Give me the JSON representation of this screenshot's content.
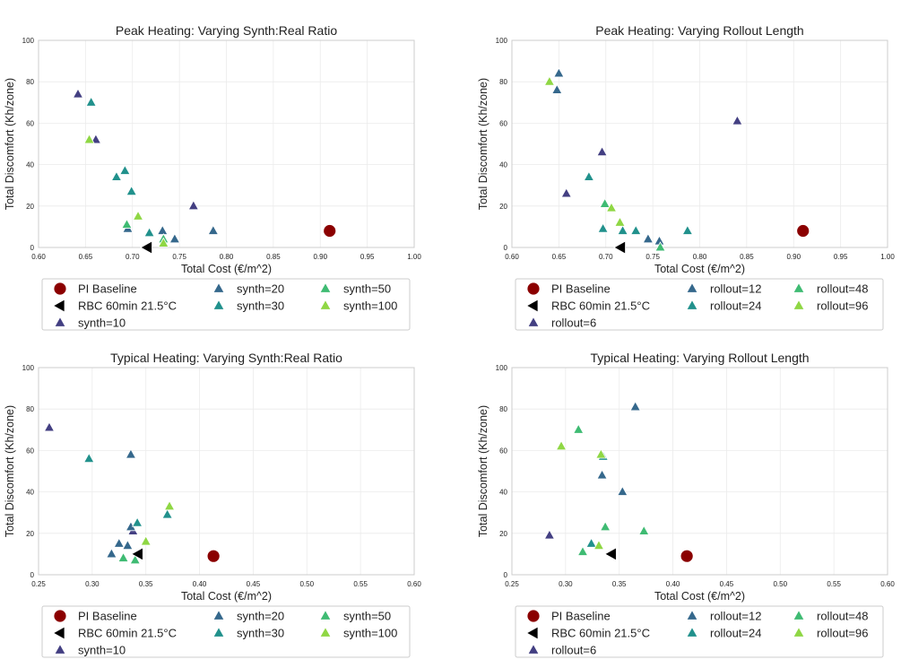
{
  "colors": {
    "pi_baseline": "#8b0000",
    "rbc": "#000000",
    "v1": "#433f82",
    "v2": "#35688c",
    "v3": "#21918c",
    "v4": "#3fbb73",
    "v5": "#8fd744",
    "grid": "#ebebeb"
  },
  "chart_data": [
    {
      "type": "scatter",
      "title": "Peak Heating: Varying Synth:Real Ratio",
      "xlabel": "Total Cost (€/m^2)",
      "ylabel": "Total Discomfort (Kh/zone)",
      "xlim": [
        0.6,
        1.0
      ],
      "ylim": [
        0,
        100
      ],
      "xticks": [
        "0.60",
        "0.65",
        "0.70",
        "0.75",
        "0.80",
        "0.85",
        "0.90",
        "0.95",
        "1.00"
      ],
      "yticks": [
        "0",
        "20",
        "40",
        "60",
        "80",
        "100"
      ],
      "grid": true,
      "legend_position": "below",
      "legend_items": [
        "PI Baseline",
        "RBC 60min 21.5°C",
        "synth=10",
        "synth=20",
        "synth=30",
        "synth=50",
        "synth=100"
      ],
      "series": [
        {
          "name": "PI Baseline",
          "marker": "circle",
          "color_key": "pi_baseline",
          "points": [
            [
              0.91,
              8
            ]
          ]
        },
        {
          "name": "RBC 60min 21.5°C",
          "marker": "left-triangle",
          "color_key": "rbc",
          "points": [
            [
              0.716,
              0
            ]
          ]
        },
        {
          "name": "synth=10",
          "marker": "triangle",
          "color_key": "v1",
          "points": [
            [
              0.642,
              74
            ],
            [
              0.661,
              52
            ],
            [
              0.765,
              20
            ]
          ]
        },
        {
          "name": "synth=20",
          "marker": "triangle",
          "color_key": "v2",
          "points": [
            [
              0.695,
              9
            ],
            [
              0.732,
              8
            ],
            [
              0.745,
              4
            ],
            [
              0.786,
              8
            ]
          ]
        },
        {
          "name": "synth=30",
          "marker": "triangle",
          "color_key": "v3",
          "points": [
            [
              0.656,
              70
            ],
            [
              0.692,
              37
            ],
            [
              0.683,
              34
            ],
            [
              0.699,
              27
            ],
            [
              0.718,
              7
            ]
          ]
        },
        {
          "name": "synth=50",
          "marker": "triangle",
          "color_key": "v4",
          "points": [
            [
              0.694,
              11
            ],
            [
              0.733,
              4
            ]
          ]
        },
        {
          "name": "synth=100",
          "marker": "triangle",
          "color_key": "v5",
          "points": [
            [
              0.654,
              52
            ],
            [
              0.706,
              15
            ],
            [
              0.733,
              2
            ]
          ]
        }
      ]
    },
    {
      "type": "scatter",
      "title": "Peak Heating: Varying Rollout Length",
      "xlabel": "Total Cost (€/m^2)",
      "ylabel": "Total Discomfort (Kh/zone)",
      "xlim": [
        0.6,
        1.0
      ],
      "ylim": [
        0,
        100
      ],
      "xticks": [
        "0.60",
        "0.65",
        "0.70",
        "0.75",
        "0.80",
        "0.85",
        "0.90",
        "0.95",
        "1.00"
      ],
      "yticks": [
        "0",
        "20",
        "40",
        "60",
        "80",
        "100"
      ],
      "grid": true,
      "legend_position": "below",
      "legend_items": [
        "PI Baseline",
        "RBC 60min 21.5°C",
        "rollout=6",
        "rollout=12",
        "rollout=24",
        "rollout=48",
        "rollout=96"
      ],
      "series": [
        {
          "name": "PI Baseline",
          "marker": "circle",
          "color_key": "pi_baseline",
          "points": [
            [
              0.91,
              8
            ]
          ]
        },
        {
          "name": "RBC 60min 21.5°C",
          "marker": "left-triangle",
          "color_key": "rbc",
          "points": [
            [
              0.716,
              0
            ]
          ]
        },
        {
          "name": "rollout=6",
          "marker": "triangle",
          "color_key": "v1",
          "points": [
            [
              0.658,
              26
            ],
            [
              0.696,
              46
            ],
            [
              0.84,
              61
            ]
          ]
        },
        {
          "name": "rollout=12",
          "marker": "triangle",
          "color_key": "v2",
          "points": [
            [
              0.65,
              84
            ],
            [
              0.648,
              76
            ],
            [
              0.745,
              4
            ],
            [
              0.757,
              3
            ]
          ]
        },
        {
          "name": "rollout=24",
          "marker": "triangle",
          "color_key": "v3",
          "points": [
            [
              0.682,
              34
            ],
            [
              0.697,
              9
            ],
            [
              0.718,
              8
            ],
            [
              0.732,
              8
            ],
            [
              0.787,
              8
            ]
          ]
        },
        {
          "name": "rollout=48",
          "marker": "triangle",
          "color_key": "v4",
          "points": [
            [
              0.699,
              21
            ],
            [
              0.758,
              0
            ]
          ]
        },
        {
          "name": "rollout=96",
          "marker": "triangle",
          "color_key": "v5",
          "points": [
            [
              0.64,
              80
            ],
            [
              0.706,
              19
            ],
            [
              0.715,
              12
            ]
          ]
        }
      ]
    },
    {
      "type": "scatter",
      "title": "Typical Heating: Varying Synth:Real Ratio",
      "xlabel": "Total Cost (€/m^2)",
      "ylabel": "Total Discomfort (Kh/zone)",
      "xlim": [
        0.25,
        0.6
      ],
      "ylim": [
        0,
        100
      ],
      "xticks": [
        "0.25",
        "0.30",
        "0.35",
        "0.40",
        "0.45",
        "0.50",
        "0.55",
        "0.60"
      ],
      "yticks": [
        "0",
        "20",
        "40",
        "60",
        "80",
        "100"
      ],
      "grid": true,
      "legend_position": "below",
      "legend_items": [
        "PI Baseline",
        "RBC 60min 21.5°C",
        "synth=10",
        "synth=20",
        "synth=30",
        "synth=50",
        "synth=100"
      ],
      "series": [
        {
          "name": "PI Baseline",
          "marker": "circle",
          "color_key": "pi_baseline",
          "points": [
            [
              0.413,
              9
            ]
          ]
        },
        {
          "name": "RBC 60min 21.5°C",
          "marker": "left-triangle",
          "color_key": "rbc",
          "points": [
            [
              0.343,
              10
            ]
          ]
        },
        {
          "name": "synth=10",
          "marker": "triangle",
          "color_key": "v1",
          "points": [
            [
              0.26,
              71
            ],
            [
              0.338,
              21
            ]
          ]
        },
        {
          "name": "synth=20",
          "marker": "triangle",
          "color_key": "v2",
          "points": [
            [
              0.336,
              58
            ],
            [
              0.318,
              10
            ],
            [
              0.325,
              15
            ],
            [
              0.333,
              14
            ],
            [
              0.336,
              23
            ]
          ]
        },
        {
          "name": "synth=30",
          "marker": "triangle",
          "color_key": "v3",
          "points": [
            [
              0.297,
              56
            ],
            [
              0.342,
              25
            ],
            [
              0.37,
              29
            ]
          ]
        },
        {
          "name": "synth=50",
          "marker": "triangle",
          "color_key": "v4",
          "points": [
            [
              0.329,
              8
            ],
            [
              0.34,
              7
            ]
          ]
        },
        {
          "name": "synth=100",
          "marker": "triangle",
          "color_key": "v5",
          "points": [
            [
              0.372,
              33
            ],
            [
              0.35,
              16
            ]
          ]
        }
      ]
    },
    {
      "type": "scatter",
      "title": "Typical Heating: Varying Rollout Length",
      "xlabel": "Total Cost (€/m^2)",
      "ylabel": "Total Discomfort (Kh/zone)",
      "xlim": [
        0.25,
        0.6
      ],
      "ylim": [
        0,
        100
      ],
      "xticks": [
        "0.25",
        "0.30",
        "0.35",
        "0.40",
        "0.45",
        "0.50",
        "0.55",
        "0.60"
      ],
      "yticks": [
        "0",
        "20",
        "40",
        "60",
        "80",
        "100"
      ],
      "grid": true,
      "legend_position": "below",
      "legend_items": [
        "PI Baseline",
        "RBC 60min 21.5°C",
        "rollout=6",
        "rollout=12",
        "rollout=24",
        "rollout=48",
        "rollout=96"
      ],
      "series": [
        {
          "name": "PI Baseline",
          "marker": "circle",
          "color_key": "pi_baseline",
          "points": [
            [
              0.413,
              9
            ]
          ]
        },
        {
          "name": "RBC 60min 21.5°C",
          "marker": "left-triangle",
          "color_key": "rbc",
          "points": [
            [
              0.343,
              10
            ]
          ]
        },
        {
          "name": "rollout=6",
          "marker": "triangle",
          "color_key": "v1",
          "points": [
            [
              0.285,
              19
            ]
          ]
        },
        {
          "name": "rollout=12",
          "marker": "triangle",
          "color_key": "v2",
          "points": [
            [
              0.365,
              81
            ],
            [
              0.334,
              48
            ],
            [
              0.353,
              40
            ]
          ]
        },
        {
          "name": "rollout=24",
          "marker": "triangle",
          "color_key": "v3",
          "points": [
            [
              0.335,
              57
            ],
            [
              0.324,
              15
            ]
          ]
        },
        {
          "name": "rollout=48",
          "marker": "triangle",
          "color_key": "v4",
          "points": [
            [
              0.312,
              70
            ],
            [
              0.337,
              23
            ],
            [
              0.373,
              21
            ],
            [
              0.316,
              11
            ]
          ]
        },
        {
          "name": "rollout=96",
          "marker": "triangle",
          "color_key": "v5",
          "points": [
            [
              0.296,
              62
            ],
            [
              0.333,
              58
            ],
            [
              0.331,
              14
            ]
          ]
        }
      ]
    }
  ]
}
